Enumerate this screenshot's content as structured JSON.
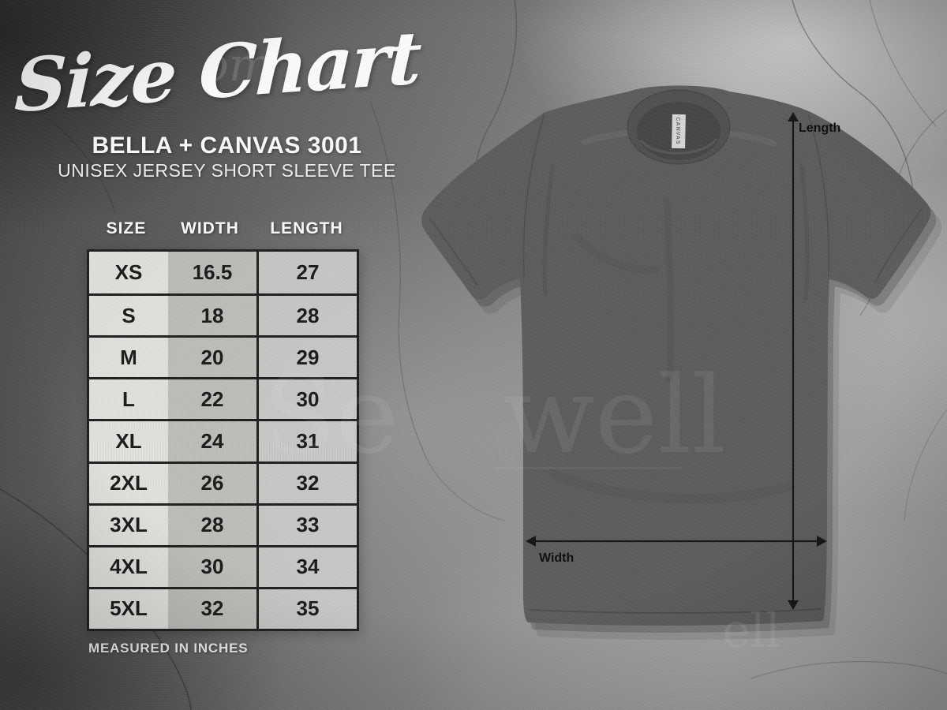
{
  "header": {
    "title": "Size Chart",
    "brand": "BELLA + CANVAS 3001",
    "subtitle": "UNISEX JERSEY SHORT SLEEVE TEE"
  },
  "table": {
    "note": "MEASURED IN INCHES"
  },
  "diagram": {
    "length_label": "Length",
    "width_label": "Width",
    "neck_tag": "CANVAS"
  },
  "watermarks": {
    "top": "om",
    "mid_left": "Se",
    "mid_right": "well",
    "bottom": "ell"
  },
  "colors": {
    "shirt": "#5d5d5d",
    "collar_band": "#515151",
    "collar_inner": "#464646",
    "table_border": "#1f1f1f",
    "arrow": "#151515",
    "cell_light": "#eae8e5",
    "cell_mid": "#c7c5c2",
    "cell_length": "#d4d2cf",
    "text_dark": "#1a1a1a",
    "text_light": "#ffffff"
  },
  "chart_data": {
    "type": "table",
    "title": "BELLA + CANVAS 3001 — Unisex Jersey Short Sleeve Tee size chart",
    "columns": [
      "SIZE",
      "WIDTH",
      "LENGTH"
    ],
    "units": "inches",
    "rows": [
      [
        "XS",
        16.5,
        27
      ],
      [
        "S",
        18,
        28
      ],
      [
        "M",
        20,
        29
      ],
      [
        "L",
        22,
        30
      ],
      [
        "XL",
        24,
        31
      ],
      [
        "2XL",
        26,
        32
      ],
      [
        "3XL",
        28,
        33
      ],
      [
        "4XL",
        30,
        34
      ],
      [
        "5XL",
        32,
        35
      ]
    ],
    "layout": {
      "legend": false,
      "grid": true,
      "note": "MEASURED IN INCHES"
    }
  }
}
